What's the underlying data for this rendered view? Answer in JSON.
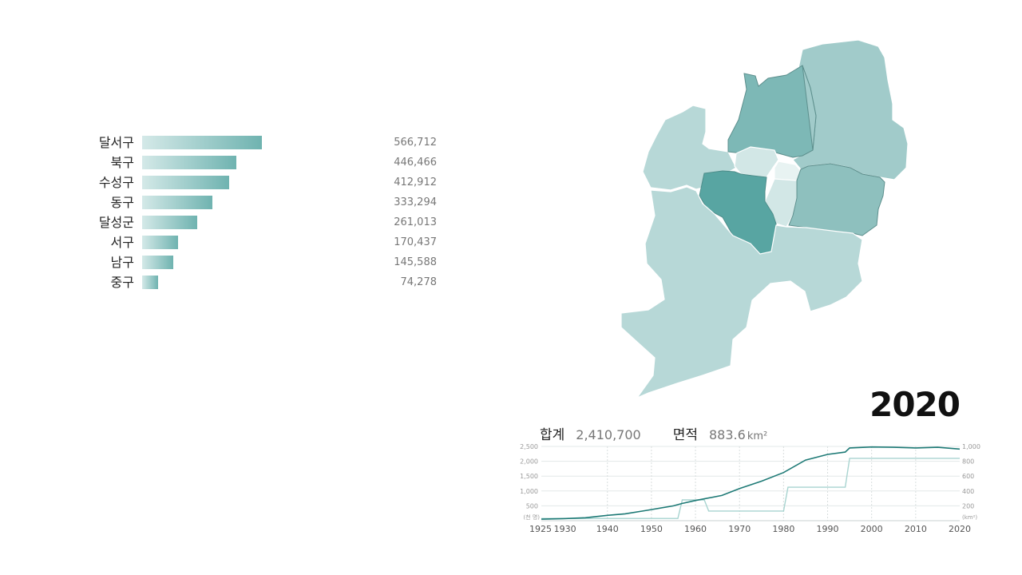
{
  "chart_data": [
    {
      "type": "bar",
      "orientation": "horizontal",
      "categories": [
        "달서구",
        "북구",
        "수성구",
        "동구",
        "달성군",
        "서구",
        "남구",
        "중구"
      ],
      "values": [
        566712,
        446466,
        412912,
        333294,
        261013,
        170437,
        145588,
        74278
      ],
      "value_labels": [
        "566,712",
        "446,466",
        "412,912",
        "333,294",
        "261,013",
        "170,437",
        "145,588",
        "74,278"
      ],
      "colors": {
        "bar_start": "#d4e9e8",
        "bar_end": "#6fb3b0"
      }
    },
    {
      "type": "line",
      "x_ticks": [
        "1925",
        "1930",
        "1940",
        "1950",
        "1960",
        "1970",
        "1980",
        "1990",
        "2000",
        "2010",
        "2020"
      ],
      "xlim": [
        1925,
        2020
      ],
      "y_left": {
        "ticks": [
          "500",
          "1,000",
          "1,500",
          "2,000",
          "2,500"
        ],
        "unit": "(천 명)",
        "ylim": [
          0,
          2500
        ]
      },
      "y_right": {
        "ticks": [
          "200",
          "400",
          "600",
          "800",
          "1,000"
        ],
        "unit": "(km²)",
        "ylim": [
          0,
          1000
        ]
      },
      "grid": true,
      "series": [
        {
          "axis": "left",
          "color": "#1e7a76",
          "x": [
            1925,
            1930,
            1935,
            1940,
            1944,
            1949,
            1955,
            1957,
            1960,
            1966,
            1970,
            1975,
            1980,
            1985,
            1990,
            1994,
            1995,
            2000,
            2005,
            2010,
            2015,
            2020
          ],
          "y": [
            50,
            70,
            100,
            180,
            230,
            350,
            500,
            580,
            680,
            850,
            1080,
            1330,
            1620,
            2040,
            2230,
            2310,
            2450,
            2480,
            2470,
            2450,
            2470,
            2410
          ]
        },
        {
          "axis": "right",
          "color": "#a8d4d0",
          "x": [
            1925,
            1956,
            1957,
            1962,
            1963,
            1980,
            1981,
            1994,
            1995,
            2020
          ],
          "y": [
            30,
            30,
            280,
            280,
            130,
            130,
            450,
            450,
            840,
            840
          ]
        }
      ]
    },
    {
      "type": "map",
      "regions": [
        {
          "name": "군위군",
          "color": "#a1cbca"
        },
        {
          "name": "달성군 북부",
          "color": "#b7d8d7"
        },
        {
          "name": "북구",
          "color": "#7db8b6"
        },
        {
          "name": "동구",
          "color": "#a1cbca"
        },
        {
          "name": "서구",
          "color": "#d2e7e6"
        },
        {
          "name": "중구",
          "color": "#e8f3f2"
        },
        {
          "name": "남구",
          "color": "#d2e7e6"
        },
        {
          "name": "수성구",
          "color": "#8ec0be"
        },
        {
          "name": "달서구",
          "color": "#58a5a2"
        },
        {
          "name": "달성군",
          "color": "#b7d8d7"
        }
      ]
    }
  ],
  "summary": {
    "total_label": "합계",
    "total_value": "2,410,700",
    "area_label": "면적",
    "area_value": "883.6",
    "area_unit": "km²"
  },
  "year": "2020"
}
